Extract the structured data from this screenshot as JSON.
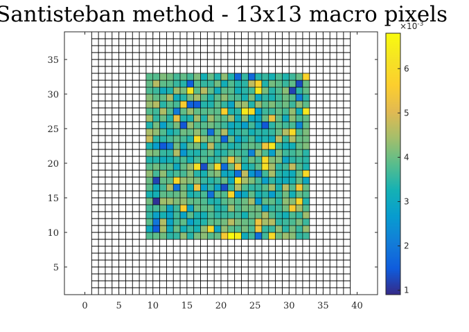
{
  "chart_data": {
    "type": "heatmap",
    "title": "Santisteban method - 13x13 macro pixels",
    "xlabel": "",
    "ylabel": "",
    "xlim": [
      -3,
      43
    ],
    "ylim": [
      1,
      39
    ],
    "x_ticks": [
      0,
      5,
      10,
      15,
      20,
      25,
      30,
      35,
      40
    ],
    "y_ticks": [
      5,
      10,
      15,
      20,
      25,
      30,
      35
    ],
    "grid": {
      "x_range": [
        1,
        39
      ],
      "y_range": [
        1,
        39
      ],
      "cell_size": 1
    },
    "data_region": {
      "x_range": [
        9,
        33
      ],
      "y_range": [
        9,
        33
      ],
      "rows": 24,
      "cols": 24,
      "value_range": [
        0.9,
        6.8
      ],
      "notable_cells": [
        {
          "x": 10,
          "y": 14,
          "value": 1.0
        },
        {
          "x": 10,
          "y": 17,
          "value": 1.2
        },
        {
          "x": 10,
          "y": 10,
          "value": 1.5
        },
        {
          "x": 21,
          "y": 9,
          "value": 6.8
        },
        {
          "x": 22,
          "y": 9,
          "value": 6.5
        },
        {
          "x": 32,
          "y": 32,
          "value": 5.8
        },
        {
          "x": 32,
          "y": 27,
          "value": 6.3
        },
        {
          "x": 30,
          "y": 30,
          "value": 1.2
        },
        {
          "x": 31,
          "y": 31,
          "value": 1.3
        },
        {
          "x": 15,
          "y": 28,
          "value": 1.6
        },
        {
          "x": 16,
          "y": 28,
          "value": 1.5
        }
      ]
    },
    "colorbar": {
      "ticks": [
        1,
        2,
        3,
        4,
        5,
        6
      ],
      "range": [
        0.9,
        6.8
      ],
      "exponent_label": "×10",
      "exponent": "-3",
      "colormap": "parula",
      "position": "right"
    }
  }
}
